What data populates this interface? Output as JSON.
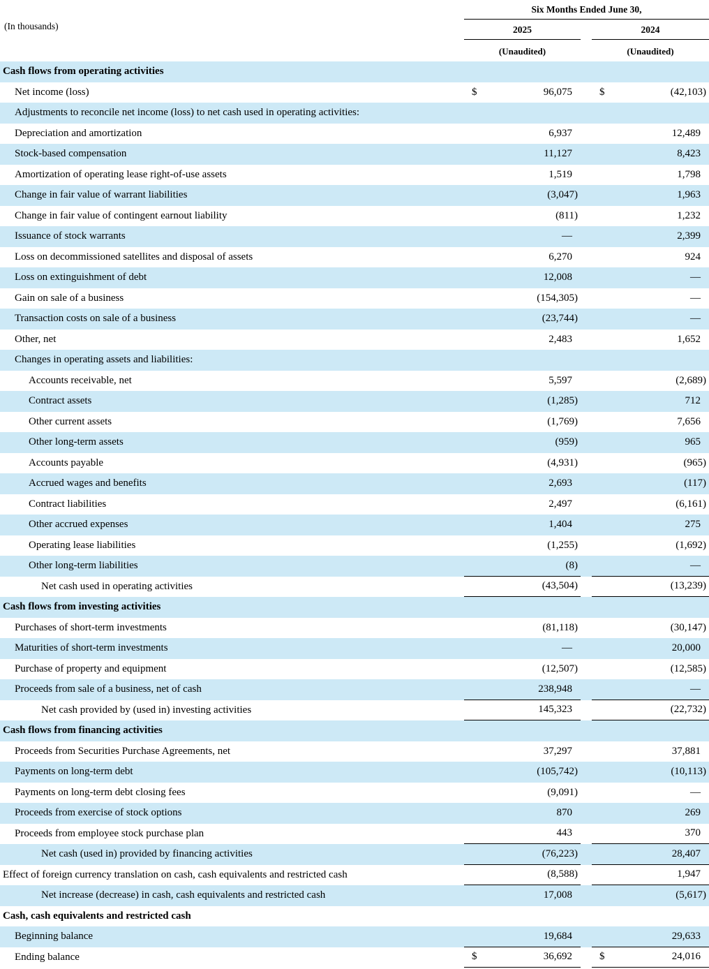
{
  "page": {
    "background": "#ffffff",
    "row_shade_color": "#cde9f6",
    "text_color": "#000000"
  },
  "header": {
    "units_label": "(In thousands)",
    "period_title": "Six Months Ended June 30,",
    "columns": [
      {
        "year": "2025",
        "note": "(Unaudited)"
      },
      {
        "year": "2024",
        "note": "(Unaudited)"
      }
    ]
  },
  "table": {
    "rows": [
      {
        "label": "Cash flows from operating activities",
        "v2025": "",
        "v2024": "",
        "indent": 0,
        "bold": true,
        "shade": "blue",
        "underline": false,
        "dollar": false
      },
      {
        "label": "Net income (loss)",
        "v2025": "96,075",
        "v2024": "(42,103)",
        "indent": 1,
        "bold": false,
        "shade": "white",
        "underline": false,
        "dollar": true
      },
      {
        "label": "Adjustments to reconcile net income (loss) to net cash used in operating activities:",
        "v2025": "",
        "v2024": "",
        "indent": 1,
        "bold": false,
        "shade": "blue",
        "underline": false,
        "dollar": false
      },
      {
        "label": "Depreciation and amortization",
        "v2025": "6,937",
        "v2024": "12,489",
        "indent": 1,
        "bold": false,
        "shade": "white",
        "underline": false,
        "dollar": false
      },
      {
        "label": "Stock-based compensation",
        "v2025": "11,127",
        "v2024": "8,423",
        "indent": 1,
        "bold": false,
        "shade": "blue",
        "underline": false,
        "dollar": false
      },
      {
        "label": "Amortization of operating lease right-of-use assets",
        "v2025": "1,519",
        "v2024": "1,798",
        "indent": 1,
        "bold": false,
        "shade": "white",
        "underline": false,
        "dollar": false
      },
      {
        "label": "Change in fair value of warrant liabilities",
        "v2025": "(3,047)",
        "v2024": "1,963",
        "indent": 1,
        "bold": false,
        "shade": "blue",
        "underline": false,
        "dollar": false
      },
      {
        "label": "Change in fair value of contingent earnout liability",
        "v2025": "(811)",
        "v2024": "1,232",
        "indent": 1,
        "bold": false,
        "shade": "white",
        "underline": false,
        "dollar": false
      },
      {
        "label": "Issuance of stock warrants",
        "v2025": "—",
        "v2024": "2,399",
        "indent": 1,
        "bold": false,
        "shade": "blue",
        "underline": false,
        "dollar": false
      },
      {
        "label": "Loss on decommissioned satellites and disposal of assets",
        "v2025": "6,270",
        "v2024": "924",
        "indent": 1,
        "bold": false,
        "shade": "white",
        "underline": false,
        "dollar": false
      },
      {
        "label": "Loss on extinguishment of debt",
        "v2025": "12,008",
        "v2024": "—",
        "indent": 1,
        "bold": false,
        "shade": "blue",
        "underline": false,
        "dollar": false
      },
      {
        "label": "Gain on sale of a business",
        "v2025": "(154,305)",
        "v2024": "—",
        "indent": 1,
        "bold": false,
        "shade": "white",
        "underline": false,
        "dollar": false
      },
      {
        "label": "Transaction costs on sale of a business",
        "v2025": "(23,744)",
        "v2024": "—",
        "indent": 1,
        "bold": false,
        "shade": "blue",
        "underline": false,
        "dollar": false
      },
      {
        "label": "Other, net",
        "v2025": "2,483",
        "v2024": "1,652",
        "indent": 1,
        "bold": false,
        "shade": "white",
        "underline": false,
        "dollar": false
      },
      {
        "label": "Changes in operating assets and liabilities:",
        "v2025": "",
        "v2024": "",
        "indent": 1,
        "bold": false,
        "shade": "blue",
        "underline": false,
        "dollar": false
      },
      {
        "label": "Accounts receivable, net",
        "v2025": "5,597",
        "v2024": "(2,689)",
        "indent": 2,
        "bold": false,
        "shade": "white",
        "underline": false,
        "dollar": false
      },
      {
        "label": "Contract assets",
        "v2025": "(1,285)",
        "v2024": "712",
        "indent": 2,
        "bold": false,
        "shade": "blue",
        "underline": false,
        "dollar": false
      },
      {
        "label": "Other current assets",
        "v2025": "(1,769)",
        "v2024": "7,656",
        "indent": 2,
        "bold": false,
        "shade": "white",
        "underline": false,
        "dollar": false
      },
      {
        "label": "Other long-term assets",
        "v2025": "(959)",
        "v2024": "965",
        "indent": 2,
        "bold": false,
        "shade": "blue",
        "underline": false,
        "dollar": false
      },
      {
        "label": "Accounts payable",
        "v2025": "(4,931)",
        "v2024": "(965)",
        "indent": 2,
        "bold": false,
        "shade": "white",
        "underline": false,
        "dollar": false
      },
      {
        "label": "Accrued wages and benefits",
        "v2025": "2,693",
        "v2024": "(117)",
        "indent": 2,
        "bold": false,
        "shade": "blue",
        "underline": false,
        "dollar": false
      },
      {
        "label": "Contract liabilities",
        "v2025": "2,497",
        "v2024": "(6,161)",
        "indent": 2,
        "bold": false,
        "shade": "white",
        "underline": false,
        "dollar": false
      },
      {
        "label": "Other accrued expenses",
        "v2025": "1,404",
        "v2024": "275",
        "indent": 2,
        "bold": false,
        "shade": "blue",
        "underline": false,
        "dollar": false
      },
      {
        "label": "Operating lease liabilities",
        "v2025": "(1,255)",
        "v2024": "(1,692)",
        "indent": 2,
        "bold": false,
        "shade": "white",
        "underline": false,
        "dollar": false
      },
      {
        "label": "Other long-term liabilities",
        "v2025": "(8)",
        "v2024": "—",
        "indent": 2,
        "bold": false,
        "shade": "blue",
        "underline": true,
        "dollar": false
      },
      {
        "label": "Net cash used in operating activities",
        "v2025": "(43,504)",
        "v2024": "(13,239)",
        "indent": 3,
        "bold": false,
        "shade": "white",
        "underline": true,
        "dollar": false
      },
      {
        "label": "Cash flows from investing activities",
        "v2025": "",
        "v2024": "",
        "indent": 0,
        "bold": true,
        "shade": "blue",
        "underline": false,
        "dollar": false
      },
      {
        "label": "Purchases of short-term investments",
        "v2025": "(81,118)",
        "v2024": "(30,147)",
        "indent": 1,
        "bold": false,
        "shade": "white",
        "underline": false,
        "dollar": false
      },
      {
        "label": "Maturities of short-term investments",
        "v2025": "—",
        "v2024": "20,000",
        "indent": 1,
        "bold": false,
        "shade": "blue",
        "underline": false,
        "dollar": false
      },
      {
        "label": "Purchase of property and equipment",
        "v2025": "(12,507)",
        "v2024": "(12,585)",
        "indent": 1,
        "bold": false,
        "shade": "white",
        "underline": false,
        "dollar": false
      },
      {
        "label": "Proceeds from sale of a business, net of cash",
        "v2025": "238,948",
        "v2024": "—",
        "indent": 1,
        "bold": false,
        "shade": "blue",
        "underline": true,
        "dollar": false
      },
      {
        "label": "Net cash provided by (used in) investing activities",
        "v2025": "145,323",
        "v2024": "(22,732)",
        "indent": 3,
        "bold": false,
        "shade": "white",
        "underline": true,
        "dollar": false
      },
      {
        "label": "Cash flows from financing activities",
        "v2025": "",
        "v2024": "",
        "indent": 0,
        "bold": true,
        "shade": "blue",
        "underline": false,
        "dollar": false
      },
      {
        "label": "Proceeds from Securities Purchase Agreements, net",
        "v2025": "37,297",
        "v2024": "37,881",
        "indent": 1,
        "bold": false,
        "shade": "white",
        "underline": false,
        "dollar": false
      },
      {
        "label": "Payments on long-term debt",
        "v2025": "(105,742)",
        "v2024": "(10,113)",
        "indent": 1,
        "bold": false,
        "shade": "blue",
        "underline": false,
        "dollar": false
      },
      {
        "label": "Payments on long-term debt closing fees",
        "v2025": "(9,091)",
        "v2024": "—",
        "indent": 1,
        "bold": false,
        "shade": "white",
        "underline": false,
        "dollar": false
      },
      {
        "label": "Proceeds from exercise of stock options",
        "v2025": "870",
        "v2024": "269",
        "indent": 1,
        "bold": false,
        "shade": "blue",
        "underline": false,
        "dollar": false
      },
      {
        "label": "Proceeds from employee stock purchase plan",
        "v2025": "443",
        "v2024": "370",
        "indent": 1,
        "bold": false,
        "shade": "white",
        "underline": true,
        "dollar": false
      },
      {
        "label": "Net cash (used in) provided by financing activities",
        "v2025": "(76,223)",
        "v2024": "28,407",
        "indent": 3,
        "bold": false,
        "shade": "blue",
        "underline": true,
        "dollar": false
      },
      {
        "label": "Effect of foreign currency translation on cash, cash equivalents and restricted cash",
        "v2025": "(8,588)",
        "v2024": "1,947",
        "indent": 0,
        "bold": false,
        "shade": "white",
        "underline": true,
        "dollar": false
      },
      {
        "label": "Net increase (decrease) in cash, cash equivalents and restricted cash",
        "v2025": "17,008",
        "v2024": "(5,617)",
        "indent": 3,
        "bold": false,
        "shade": "blue",
        "underline": false,
        "dollar": false
      },
      {
        "label": "Cash, cash equivalents and restricted cash",
        "v2025": "",
        "v2024": "",
        "indent": 0,
        "bold": true,
        "shade": "white",
        "underline": false,
        "dollar": false
      },
      {
        "label": "Beginning balance",
        "v2025": "19,684",
        "v2024": "29,633",
        "indent": 1,
        "bold": false,
        "shade": "blue",
        "underline": true,
        "dollar": false
      },
      {
        "label": "Ending balance",
        "v2025": "36,692",
        "v2024": "24,016",
        "indent": 1,
        "bold": false,
        "shade": "white",
        "underline": true,
        "dollar": true
      }
    ]
  }
}
